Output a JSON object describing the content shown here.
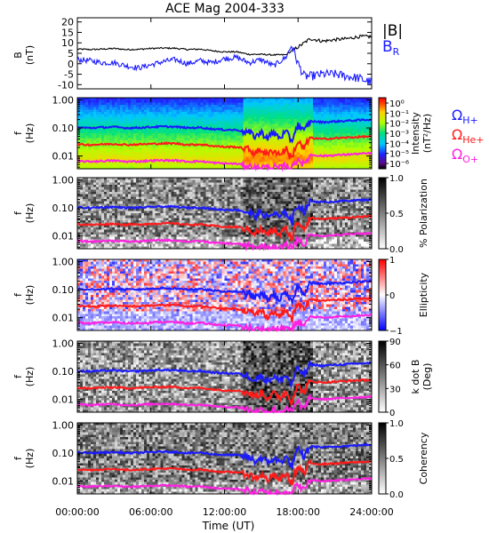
{
  "title": "ACE Mag 2004-333",
  "xlabel": "Time (UT)",
  "x_ticks": [
    "00:00:00",
    "06:00:00",
    "12:00:00",
    "18:00:00",
    "24:00:00"
  ],
  "x_tick_hours": [
    0,
    6,
    12,
    18,
    24
  ],
  "colors": {
    "B_total": "#000000",
    "B_R": "#1a1aff",
    "H": "#1a1aff",
    "He": "#ff1a1a",
    "O": "#ff20e0"
  },
  "chart_data": [
    {
      "type": "line",
      "panel": "B",
      "ylabel": "B",
      "yunit": "(nT)",
      "ylim": [
        -12,
        22
      ],
      "y_ticks": [
        20,
        15,
        10,
        5,
        0,
        -5,
        -10
      ],
      "xlim_hours": [
        0,
        24
      ],
      "legend": [
        "|B|",
        "BR"
      ],
      "series": [
        {
          "name": "|B|",
          "color": "#000000",
          "x_hours": [
            0,
            1,
            2,
            3,
            4,
            5,
            6,
            7,
            8,
            9,
            10,
            11,
            12,
            13,
            14,
            15,
            16,
            17,
            18,
            19,
            20,
            21,
            22,
            23,
            24
          ],
          "values": [
            7,
            6.8,
            7,
            7.3,
            6.8,
            6.9,
            7.3,
            7.5,
            7.4,
            6.8,
            7,
            6.2,
            5.7,
            5.7,
            4.5,
            4.5,
            4.2,
            4.3,
            8,
            12,
            10.8,
            11.5,
            12,
            13,
            13
          ]
        },
        {
          "name": "BR",
          "color": "#1a1aff",
          "x_hours": [
            0,
            1,
            2,
            3,
            4,
            5,
            6,
            7,
            8,
            9,
            10,
            11,
            12,
            13,
            14,
            15,
            16,
            17,
            17.5,
            18,
            18.5,
            19,
            20,
            21,
            22,
            23,
            24
          ],
          "values": [
            2,
            1.5,
            0.5,
            0.5,
            -1,
            -2,
            -0.5,
            1,
            2,
            0,
            1.5,
            0.5,
            2.5,
            3,
            0.5,
            2,
            -1,
            3,
            9,
            0,
            -6,
            -6,
            -5,
            -5,
            -6,
            -7,
            -9
          ]
        }
      ]
    },
    {
      "type": "heatmap",
      "panel": "intensity",
      "ylabel": "f",
      "yunit": "(Hz)",
      "y_scale": "log",
      "ylim": [
        0.0035,
        1.2
      ],
      "y_ticks": [
        "1.00",
        "0.10",
        "0.01"
      ],
      "y_tick_values": [
        1,
        0.1,
        0.01
      ],
      "colorbar": {
        "label": "Intensity",
        "unit": "(nT²/Hz)",
        "scheme": "rainbow",
        "ticks": [
          "10⁰",
          "10⁻¹",
          "10⁻²",
          "10⁻³",
          "10⁻⁴",
          "10⁻⁵",
          "10⁻⁶"
        ],
        "tick_values": [
          1,
          0.1,
          0.01,
          0.001,
          0.0001,
          1e-05,
          1e-06
        ]
      },
      "gyro_legend": [
        {
          "label": "Ω",
          "sub": "H+",
          "color": "#1a1aff"
        },
        {
          "label": "Ω",
          "sub": "He+",
          "color": "#ff1a1a"
        },
        {
          "label": "Ω",
          "sub": "O+",
          "color": "#ff20e0"
        }
      ]
    },
    {
      "type": "heatmap",
      "panel": "polarization",
      "ylabel": "f",
      "yunit": "(Hz)",
      "y_scale": "log",
      "y_ticks": [
        "1.00",
        "0.10",
        "0.01"
      ],
      "y_tick_values": [
        1,
        0.1,
        0.01
      ],
      "colorbar": {
        "label": "% Polarization",
        "unit": "",
        "scheme": "gray",
        "ticks": [
          "1.0",
          "0.5",
          "0.0"
        ],
        "tick_values": [
          1,
          0.5,
          0
        ],
        "range": [
          0,
          1
        ]
      }
    },
    {
      "type": "heatmap",
      "panel": "ellipticity",
      "ylabel": "f",
      "yunit": "(Hz)",
      "y_scale": "log",
      "y_ticks": [
        "1.00",
        "0.10",
        "0.01"
      ],
      "y_tick_values": [
        1,
        0.1,
        0.01
      ],
      "colorbar": {
        "label": "Ellipticity",
        "unit": "",
        "scheme": "bwr",
        "ticks": [
          "1",
          "0",
          "−1"
        ],
        "tick_values": [
          1,
          0,
          -1
        ],
        "range": [
          -1,
          1
        ]
      }
    },
    {
      "type": "heatmap",
      "panel": "kdotb",
      "ylabel": "f",
      "yunit": "(Hz)",
      "y_scale": "log",
      "y_ticks": [
        "1.00",
        "0.10",
        "0.01"
      ],
      "y_tick_values": [
        1,
        0.1,
        0.01
      ],
      "colorbar": {
        "label": "k dot B",
        "unit": "(Deg)",
        "scheme": "gray",
        "ticks": [
          "90",
          "60",
          "30",
          "0"
        ],
        "tick_values": [
          90,
          60,
          30,
          0
        ],
        "range": [
          0,
          90
        ]
      }
    },
    {
      "type": "heatmap",
      "panel": "coherency",
      "ylabel": "f",
      "yunit": "(Hz)",
      "y_scale": "log",
      "y_ticks": [
        "1.00",
        "0.10",
        "0.01"
      ],
      "y_tick_values": [
        1,
        0.1,
        0.01
      ],
      "colorbar": {
        "label": "Coherency",
        "unit": "",
        "scheme": "gray",
        "ticks": [
          "1.0",
          "0.5",
          "0.0"
        ],
        "tick_values": [
          1,
          0.5,
          0
        ],
        "range": [
          0,
          1
        ]
      }
    }
  ],
  "gyrofrequency_lines": {
    "x_hours": [
      0,
      1,
      2,
      3,
      4,
      5,
      6,
      7,
      8,
      9,
      10,
      11,
      12,
      13,
      14,
      14.5,
      15,
      15.5,
      16,
      16.5,
      17,
      17.5,
      18,
      18.5,
      19,
      20,
      21,
      22,
      23,
      24
    ],
    "H_plus_hz": [
      0.105,
      0.1,
      0.105,
      0.108,
      0.1,
      0.102,
      0.108,
      0.112,
      0.11,
      0.1,
      0.104,
      0.092,
      0.086,
      0.085,
      0.068,
      0.05,
      0.068,
      0.045,
      0.065,
      0.045,
      0.07,
      0.03,
      0.125,
      0.07,
      0.175,
      0.16,
      0.17,
      0.18,
      0.19,
      0.2
    ],
    "He_plus_hz": [
      0.026,
      0.025,
      0.026,
      0.027,
      0.025,
      0.026,
      0.027,
      0.028,
      0.028,
      0.025,
      0.026,
      0.023,
      0.021,
      0.021,
      0.017,
      0.0125,
      0.017,
      0.011,
      0.016,
      0.011,
      0.018,
      0.0075,
      0.031,
      0.017,
      0.044,
      0.04,
      0.043,
      0.045,
      0.048,
      0.05
    ],
    "O_plus_hz": [
      0.0066,
      0.0063,
      0.0066,
      0.0068,
      0.0063,
      0.0064,
      0.0068,
      0.007,
      0.0069,
      0.0063,
      0.0065,
      0.0058,
      0.0054,
      0.0053,
      0.0043,
      0.0036,
      0.0043,
      0.0036,
      0.004,
      0.0036,
      0.0045,
      0.0036,
      0.0078,
      0.0044,
      0.011,
      0.01,
      0.0107,
      0.0113,
      0.012,
      0.0125
    ]
  }
}
